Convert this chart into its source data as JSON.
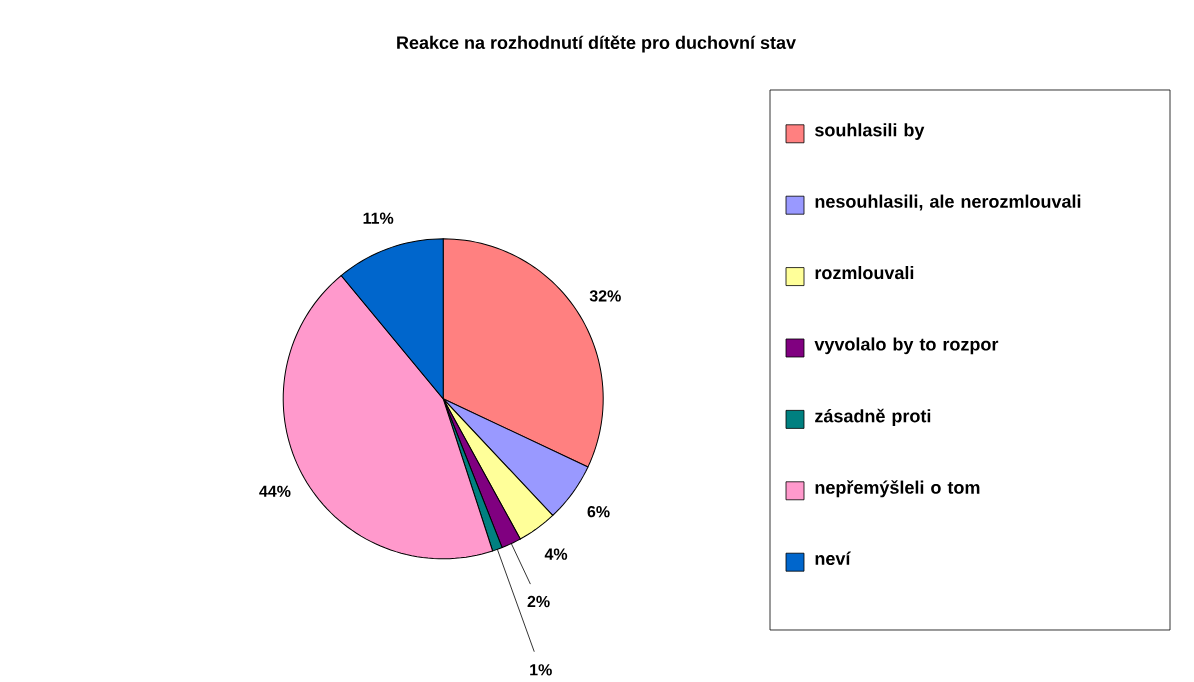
{
  "chart_data": {
    "type": "pie",
    "title": "Reakce na rozhodnutí dítěte pro duchovní stav",
    "categories": [
      "souhlasili by",
      "nesouhlasili, ale nerozmlouvali",
      "rozmlouvali",
      "vyvolalo by to rozpor",
      "zásadně proti",
      "nepřemýšleli o tom",
      "neví"
    ],
    "values": [
      32,
      6,
      4,
      2,
      1,
      44,
      11
    ],
    "value_labels": [
      "32%",
      "6%",
      "4%",
      "2%",
      "1%",
      "44%",
      "11%"
    ],
    "colors": [
      "#ff8080",
      "#9999ff",
      "#ffff99",
      "#800080",
      "#008080",
      "#ff99cc",
      "#0066cc"
    ],
    "legend": "right"
  }
}
